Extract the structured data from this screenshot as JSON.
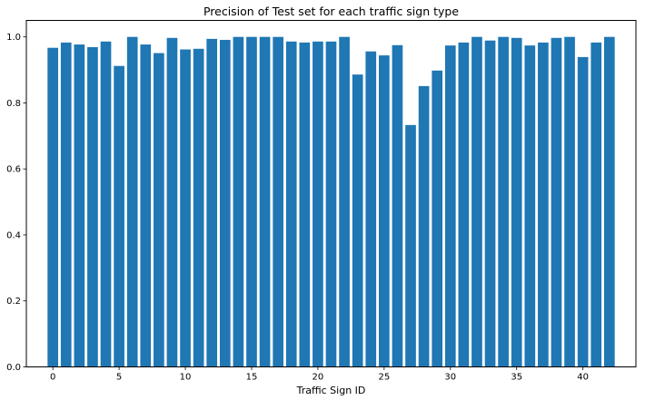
{
  "chart_data": {
    "type": "bar",
    "title": "Precision of Test set for each traffic sign type",
    "xlabel": "Traffic Sign ID",
    "ylabel": "",
    "x": [
      0,
      1,
      2,
      3,
      4,
      5,
      6,
      7,
      8,
      9,
      10,
      11,
      12,
      13,
      14,
      15,
      16,
      17,
      18,
      19,
      20,
      21,
      22,
      23,
      24,
      25,
      26,
      27,
      28,
      29,
      30,
      31,
      32,
      33,
      34,
      35,
      36,
      37,
      38,
      39,
      40,
      41,
      42
    ],
    "values": [
      0.967,
      0.983,
      0.977,
      0.969,
      0.986,
      0.912,
      1.0,
      0.977,
      0.951,
      0.997,
      0.962,
      0.964,
      0.994,
      0.991,
      1.0,
      1.0,
      1.0,
      1.0,
      0.986,
      0.983,
      0.986,
      0.986,
      1.0,
      0.886,
      0.956,
      0.944,
      0.975,
      0.733,
      0.851,
      0.898,
      0.974,
      0.983,
      1.0,
      0.989,
      1.0,
      0.997,
      0.974,
      0.983,
      0.997,
      1.0,
      0.939,
      0.983,
      1.0
    ],
    "xlim": [
      -2,
      44
    ],
    "ylim": [
      0,
      1.05
    ],
    "xticks": [
      0,
      5,
      10,
      15,
      20,
      25,
      30,
      35,
      40
    ],
    "yticks": [
      0.0,
      0.2,
      0.4,
      0.6,
      0.8,
      1.0
    ],
    "ytick_labels": [
      "0.0",
      "0.2",
      "0.4",
      "0.6",
      "0.8",
      "1.0"
    ],
    "bar_color": "#1f77b4",
    "grid": false,
    "legend": "none"
  }
}
